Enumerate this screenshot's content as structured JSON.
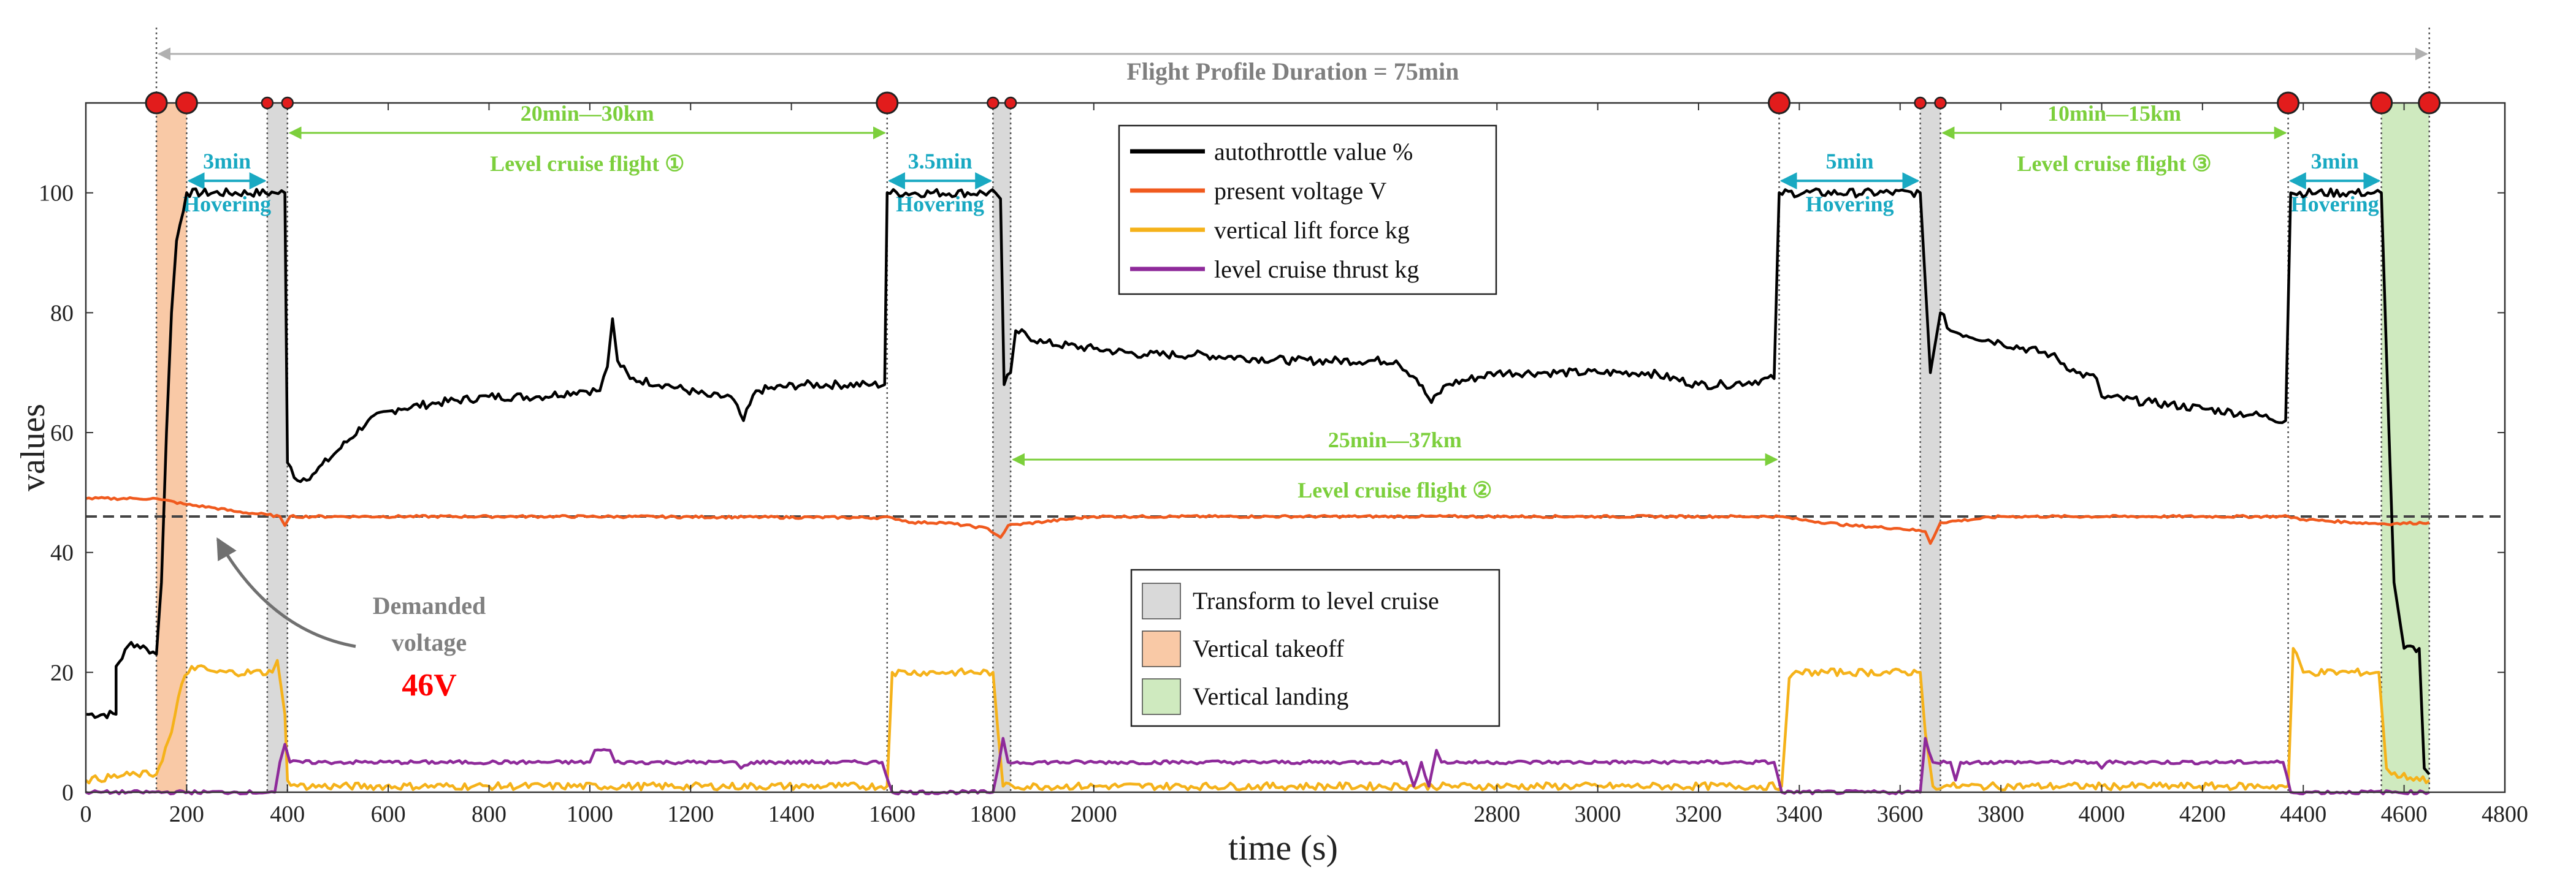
{
  "colors": {
    "autothrottle": "#000000",
    "voltage": "#f05a1e",
    "lift": "#f5b21a",
    "thrust": "#8e2a9a",
    "transform_band": "#d9d9d9",
    "takeoff_band": "#f9c9a6",
    "landing_band": "#cfeabf",
    "cyan_annot": "#19a9c2",
    "green_annot": "#7ccf3c",
    "event_marker": "#e21c1c",
    "demanded_text": "#808080",
    "demanded_value": "#ff0000",
    "duration_line": "#b0b0b0"
  },
  "chart_data": {
    "type": "line",
    "xlabel": "time (s)",
    "ylabel": "values",
    "xlim": [
      0,
      4800
    ],
    "ylim": [
      0,
      115
    ],
    "xticks": [
      0,
      200,
      400,
      600,
      800,
      1000,
      1200,
      1400,
      1600,
      1800,
      2000,
      2800,
      3000,
      3200,
      3400,
      3600,
      3800,
      4000,
      4200,
      4400,
      4600,
      4800
    ],
    "yticks": [
      0,
      20,
      40,
      60,
      80,
      100
    ],
    "grid": false,
    "legend_placement": "top-center",
    "series": [
      {
        "name": "autothrottle value %",
        "color_key": "autothrottle",
        "points": [
          [
            0,
            13
          ],
          [
            60,
            13
          ],
          [
            60,
            21
          ],
          [
            90,
            25
          ],
          [
            120,
            24
          ],
          [
            140,
            23
          ],
          [
            150,
            35
          ],
          [
            160,
            60
          ],
          [
            170,
            80
          ],
          [
            180,
            92
          ],
          [
            200,
            100
          ],
          [
            375,
            100
          ],
          [
            395,
            100
          ],
          [
            400,
            55
          ],
          [
            420,
            52
          ],
          [
            450,
            53
          ],
          [
            500,
            57
          ],
          [
            560,
            62
          ],
          [
            620,
            64
          ],
          [
            700,
            65
          ],
          [
            800,
            66
          ],
          [
            900,
            66
          ],
          [
            980,
            67
          ],
          [
            1020,
            67
          ],
          [
            1035,
            71
          ],
          [
            1045,
            79
          ],
          [
            1055,
            72
          ],
          [
            1080,
            69
          ],
          [
            1150,
            68
          ],
          [
            1240,
            66
          ],
          [
            1280,
            66
          ],
          [
            1305,
            62
          ],
          [
            1330,
            67
          ],
          [
            1420,
            68
          ],
          [
            1560,
            68
          ],
          [
            1585,
            68
          ],
          [
            1590,
            100
          ],
          [
            1805,
            100
          ],
          [
            1815,
            99
          ],
          [
            1822,
            68
          ],
          [
            1835,
            70
          ],
          [
            1845,
            77
          ],
          [
            1900,
            75
          ],
          [
            2000,
            74
          ],
          [
            2100,
            73
          ],
          [
            2200,
            73
          ],
          [
            2400,
            72
          ],
          [
            2600,
            72
          ],
          [
            2640,
            69
          ],
          [
            2670,
            65
          ],
          [
            2700,
            68
          ],
          [
            2800,
            70
          ],
          [
            2900,
            70
          ],
          [
            3000,
            70
          ],
          [
            3100,
            70
          ],
          [
            3200,
            68
          ],
          [
            3250,
            68
          ],
          [
            3350,
            69
          ],
          [
            3360,
            100
          ],
          [
            3640,
            100
          ],
          [
            3660,
            70
          ],
          [
            3680,
            80
          ],
          [
            3700,
            77
          ],
          [
            3800,
            75
          ],
          [
            3900,
            73
          ],
          [
            3950,
            70
          ],
          [
            3990,
            69
          ],
          [
            4000,
            66
          ],
          [
            4100,
            65
          ],
          [
            4200,
            64
          ],
          [
            4300,
            63
          ],
          [
            4365,
            62
          ],
          [
            4375,
            100
          ],
          [
            4540,
            100
          ],
          [
            4555,
            100
          ],
          [
            4570,
            60
          ],
          [
            4580,
            35
          ],
          [
            4600,
            24
          ],
          [
            4630,
            24
          ],
          [
            4640,
            4
          ],
          [
            4650,
            3
          ]
        ]
      },
      {
        "name": "present voltage V",
        "color_key": "voltage",
        "points": [
          [
            0,
            49
          ],
          [
            100,
            49
          ],
          [
            140,
            49
          ],
          [
            150,
            48.8
          ],
          [
            200,
            48
          ],
          [
            250,
            47.5
          ],
          [
            300,
            46.8
          ],
          [
            360,
            46.3
          ],
          [
            385,
            46
          ],
          [
            395,
            44.5
          ],
          [
            405,
            46
          ],
          [
            500,
            46
          ],
          [
            800,
            46
          ],
          [
            1000,
            46
          ],
          [
            1600,
            45.8
          ],
          [
            1640,
            45
          ],
          [
            1700,
            45
          ],
          [
            1790,
            44
          ],
          [
            1815,
            42.5
          ],
          [
            1830,
            44.5
          ],
          [
            2000,
            46
          ],
          [
            3000,
            46
          ],
          [
            3360,
            46
          ],
          [
            3400,
            45.5
          ],
          [
            3500,
            44.5
          ],
          [
            3600,
            44
          ],
          [
            3650,
            43.5
          ],
          [
            3660,
            41.5
          ],
          [
            3680,
            45
          ],
          [
            3800,
            46
          ],
          [
            4370,
            46
          ],
          [
            4400,
            45.5
          ],
          [
            4500,
            45
          ],
          [
            4560,
            44.8
          ],
          [
            4580,
            44.8
          ],
          [
            4650,
            45
          ]
        ]
      },
      {
        "name": "vertical lift force kg",
        "color_key": "lift",
        "points": [
          [
            0,
            2
          ],
          [
            100,
            3
          ],
          [
            140,
            3
          ],
          [
            170,
            10
          ],
          [
            190,
            18
          ],
          [
            210,
            21
          ],
          [
            260,
            20
          ],
          [
            370,
            20
          ],
          [
            380,
            22
          ],
          [
            395,
            13
          ],
          [
            400,
            2
          ],
          [
            420,
            1
          ],
          [
            800,
            1
          ],
          [
            1500,
            1
          ],
          [
            1590,
            1
          ],
          [
            1600,
            20
          ],
          [
            1700,
            20
          ],
          [
            1800,
            20
          ],
          [
            1810,
            10
          ],
          [
            1820,
            1
          ],
          [
            2000,
            1
          ],
          [
            3000,
            1
          ],
          [
            3365,
            1
          ],
          [
            3380,
            19
          ],
          [
            3400,
            20
          ],
          [
            3500,
            20
          ],
          [
            3640,
            20
          ],
          [
            3650,
            10
          ],
          [
            3665,
            1
          ],
          [
            3700,
            1
          ],
          [
            4000,
            1
          ],
          [
            4370,
            1
          ],
          [
            4380,
            24
          ],
          [
            4400,
            20
          ],
          [
            4550,
            20
          ],
          [
            4565,
            4
          ],
          [
            4575,
            3
          ],
          [
            4650,
            2
          ]
        ]
      },
      {
        "name": "level cruise thrust kg",
        "color_key": "thrust",
        "points": [
          [
            0,
            0
          ],
          [
            300,
            0
          ],
          [
            375,
            0
          ],
          [
            385,
            5
          ],
          [
            395,
            8
          ],
          [
            405,
            5
          ],
          [
            500,
            5
          ],
          [
            1000,
            5
          ],
          [
            1010,
            7
          ],
          [
            1040,
            7
          ],
          [
            1050,
            5
          ],
          [
            1290,
            5
          ],
          [
            1300,
            4
          ],
          [
            1320,
            5
          ],
          [
            1580,
            5
          ],
          [
            1600,
            0
          ],
          [
            1800,
            0
          ],
          [
            1810,
            4
          ],
          [
            1820,
            9
          ],
          [
            1830,
            5
          ],
          [
            2000,
            5
          ],
          [
            2500,
            5
          ],
          [
            2620,
            5
          ],
          [
            2635,
            1
          ],
          [
            2650,
            5
          ],
          [
            2665,
            1
          ],
          [
            2680,
            7
          ],
          [
            2690,
            5
          ],
          [
            3000,
            5
          ],
          [
            3350,
            5
          ],
          [
            3365,
            0
          ],
          [
            3640,
            0
          ],
          [
            3650,
            9
          ],
          [
            3665,
            5
          ],
          [
            3700,
            5
          ],
          [
            3710,
            2
          ],
          [
            3720,
            5
          ],
          [
            3990,
            5
          ],
          [
            4000,
            4
          ],
          [
            4010,
            5
          ],
          [
            4360,
            5
          ],
          [
            4375,
            0
          ],
          [
            4650,
            0
          ]
        ]
      }
    ],
    "bands": [
      {
        "x0": 140,
        "x1": 200,
        "kind": "takeoff"
      },
      {
        "x0": 360,
        "x1": 400,
        "kind": "transform"
      },
      {
        "x0": 1800,
        "x1": 1835,
        "kind": "transform"
      },
      {
        "x0": 3640,
        "x1": 3680,
        "kind": "transform"
      },
      {
        "x0": 4555,
        "x1": 4650,
        "kind": "landing"
      }
    ],
    "dotted_lines": [
      140,
      200,
      360,
      400,
      1590,
      1800,
      1835,
      3360,
      3640,
      3680,
      4370,
      4555,
      4650
    ],
    "markers_big": [
      140,
      200,
      1590,
      3360,
      4370,
      4555,
      4650
    ],
    "markers_small": [
      360,
      400,
      1800,
      1835,
      3640,
      3680
    ],
    "demanded_voltage_level": 46,
    "flight_profile": {
      "label": "Flight Profile Duration = 75min",
      "x0": 140,
      "x1": 4650
    },
    "hover_segments": [
      {
        "x0": 200,
        "x1": 360,
        "top": "3min",
        "bottom": "Hovering"
      },
      {
        "x0": 1590,
        "x1": 1800,
        "top": "3.5min",
        "bottom": "Hovering"
      },
      {
        "x0": 3360,
        "x1": 3640,
        "top": "5min",
        "bottom": "Hovering"
      },
      {
        "x0": 4370,
        "x1": 4555,
        "top": "3min",
        "bottom": "Hovering"
      }
    ],
    "cruise_segments": [
      {
        "x0": 400,
        "x1": 1590,
        "top": "20min—30km",
        "bottom": "Level cruise flight ①",
        "y": 110
      },
      {
        "x0": 3680,
        "x1": 4370,
        "top": "10min—15km",
        "bottom": "Level cruise flight ③",
        "y": 110
      },
      {
        "x0": 1835,
        "x1": 3360,
        "top": "25min—37km",
        "bottom": "Level cruise flight ②",
        "y": 55.5
      }
    ],
    "annotation": {
      "line1": "Demanded",
      "line2": "voltage",
      "value": "46V"
    },
    "legend_top": [
      {
        "label": "autothrottle value %",
        "color_key": "autothrottle"
      },
      {
        "label": "present voltage V",
        "color_key": "voltage"
      },
      {
        "label": "vertical lift force kg",
        "color_key": "lift"
      },
      {
        "label": "level cruise thrust kg",
        "color_key": "thrust"
      }
    ],
    "legend_bands": [
      {
        "label": "Transform to level cruise",
        "color_key": "transform_band"
      },
      {
        "label": "Vertical takeoff",
        "color_key": "takeoff_band"
      },
      {
        "label": "Vertical landing",
        "color_key": "landing_band"
      }
    ]
  }
}
